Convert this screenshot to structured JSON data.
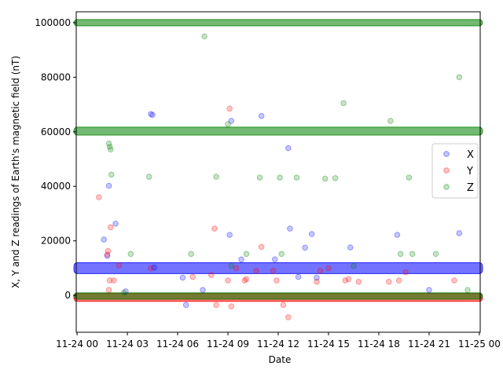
{
  "chart_data": {
    "type": "scatter",
    "title": "",
    "xlabel": "Date",
    "ylabel": "X, Y and Z readings of Earth's magnetic field (nT)",
    "xlim": [
      -0.05,
      24.05
    ],
    "ylim": [
      -13500,
      104000
    ],
    "x_ticks": [
      0,
      3,
      6,
      9,
      12,
      15,
      18,
      21,
      24
    ],
    "x_tick_labels": [
      "11-24 00",
      "11-24 03",
      "11-24 06",
      "11-24 09",
      "11-24 12",
      "11-24 15",
      "11-24 18",
      "11-24 21",
      "11-25 00"
    ],
    "y_ticks": [
      0,
      20000,
      40000,
      60000,
      80000,
      100000
    ],
    "y_tick_labels": [
      "0",
      "20000",
      "40000",
      "60000",
      "80000",
      "100000"
    ],
    "legend_position": "center-right",
    "grid": false,
    "series": [
      {
        "name": "X",
        "color": "#0000ff",
        "bands": [
          {
            "x_start": 0,
            "x_end": 24,
            "y_min": 8000,
            "y_max": 12000
          }
        ],
        "x": [
          1.6,
          1.8,
          1.9,
          2.3,
          4.4,
          4.5,
          4.6,
          6.3,
          6.5,
          9.1,
          9.2,
          9.8,
          11.0,
          11.8,
          12.6,
          12.7,
          13.2,
          13.6,
          14.0,
          14.3,
          16.3,
          19.1,
          21.0,
          22.8,
          2.9,
          7.5
        ],
        "y": [
          20500,
          14500,
          40200,
          26300,
          66500,
          66200,
          10200,
          6500,
          -3500,
          22200,
          64000,
          13200,
          65800,
          13200,
          54000,
          24500,
          6800,
          17500,
          22500,
          6500,
          17600,
          22200,
          2000,
          22800,
          1500,
          2000
        ]
      },
      {
        "name": "Y",
        "color": "#ff0000",
        "bands": [
          {
            "x_start": 0,
            "x_end": 24,
            "y_min": -2200,
            "y_max": 800
          }
        ],
        "x": [
          1.3,
          1.8,
          1.85,
          1.9,
          1.95,
          2.0,
          2.2,
          2.5,
          4.4,
          6.9,
          8.0,
          8.2,
          8.3,
          9.0,
          9.1,
          9.2,
          9.5,
          10.0,
          10.1,
          10.7,
          11.0,
          11.7,
          12.3,
          12.6,
          14.3,
          14.5,
          15.0,
          16.0,
          16.2,
          16.8,
          18.6,
          19.2,
          19.6,
          22.5,
          11.9
        ],
        "y": [
          36000,
          15000,
          16300,
          2000,
          5500,
          25000,
          5500,
          11000,
          10000,
          6800,
          7500,
          24500,
          -3500,
          5500,
          68500,
          -4000,
          10000,
          5500,
          6000,
          9000,
          17800,
          9000,
          -3500,
          -8000,
          5000,
          9000,
          10000,
          5500,
          6000,
          5000,
          5000,
          5500,
          8500,
          5500,
          5500
        ]
      },
      {
        "name": "Z",
        "color": "#008000",
        "bands": [
          {
            "x_start": 0,
            "x_end": 24,
            "y_min": 58800,
            "y_max": 61700
          },
          {
            "x_start": 0,
            "x_end": 24,
            "y_min": 99500,
            "y_max": 100500
          },
          {
            "x_start": 0,
            "x_end": 24,
            "y_min": -1200,
            "y_max": 800
          }
        ],
        "x": [
          1.9,
          1.95,
          2.0,
          2.05,
          2.8,
          3.2,
          4.3,
          6.8,
          7.6,
          8.3,
          9.2,
          10.1,
          10.9,
          12.1,
          12.2,
          13.1,
          14.8,
          15.4,
          15.9,
          16.5,
          18.7,
          19.3,
          19.8,
          20.0,
          21.4,
          22.8,
          23.3,
          9.0
        ],
        "y": [
          55700,
          54500,
          53500,
          44300,
          1000,
          15200,
          43500,
          15200,
          95000,
          43500,
          10800,
          15200,
          43200,
          43200,
          15200,
          43200,
          42800,
          43000,
          70500,
          10800,
          64000,
          15200,
          43200,
          15200,
          15200,
          80000,
          2000,
          62800
        ]
      }
    ]
  }
}
